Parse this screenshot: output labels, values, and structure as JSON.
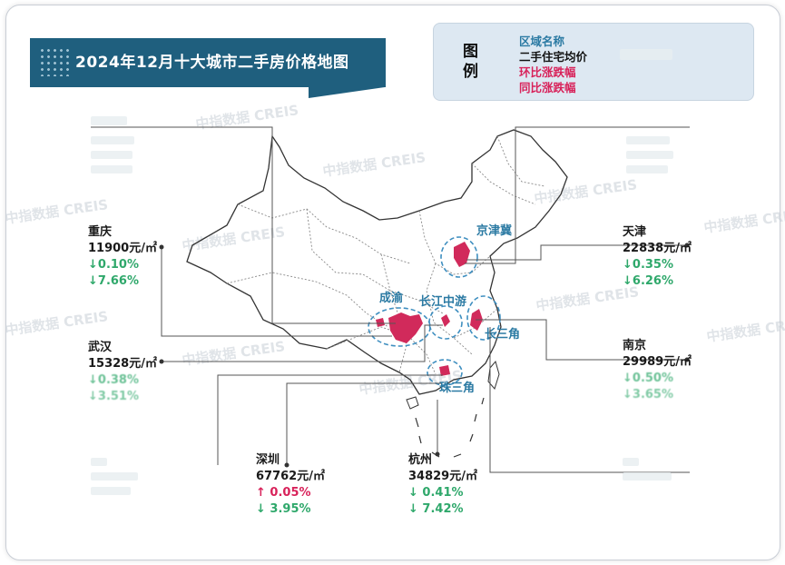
{
  "title": "2024年12月十大城市二手房价格地图",
  "legend": {
    "tu": "图",
    "li": "例",
    "line1": "区域名称",
    "line2": "二手住宅均价",
    "line3": "环比涨跌幅",
    "line4": "同比涨跌幅"
  },
  "watermark": "中指数据 CREIS",
  "regions": [
    "京津冀",
    "成渝",
    "长江中游",
    "长三角",
    "珠三角"
  ],
  "cities": {
    "chongqing": {
      "name": "重庆",
      "price": "11900元/㎡",
      "mom": "↓0.10%",
      "yoy": "↓7.66%"
    },
    "wuhan": {
      "name": "武汉",
      "price": "15328元/㎡",
      "mom": "↓0.38%",
      "yoy": "↓3.51%"
    },
    "tianjin": {
      "name": "天津",
      "price": "22838元/㎡",
      "mom": "↓0.35%",
      "yoy": "↓6.26%"
    },
    "nanjing": {
      "name": "南京",
      "price": "29989元/㎡",
      "mom": "↓0.50%",
      "yoy": "↓3.65%"
    },
    "shenzhen": {
      "name": "深圳",
      "price": "67762元/㎡",
      "mom": "↑ 0.05%",
      "yoy": "↓ 3.95%"
    },
    "hangzhou": {
      "name": "杭州",
      "price": "34829元/㎡",
      "mom": "↓ 0.41%",
      "yoy": "↓ 7.42%"
    }
  },
  "colors": {
    "banner": "#1f5f7e",
    "legend_bg": "#dde8f2",
    "up": "#d8225a",
    "down": "#2fa86b",
    "city_area": "#d12a5b",
    "region_ring": "#3f8fc0"
  }
}
